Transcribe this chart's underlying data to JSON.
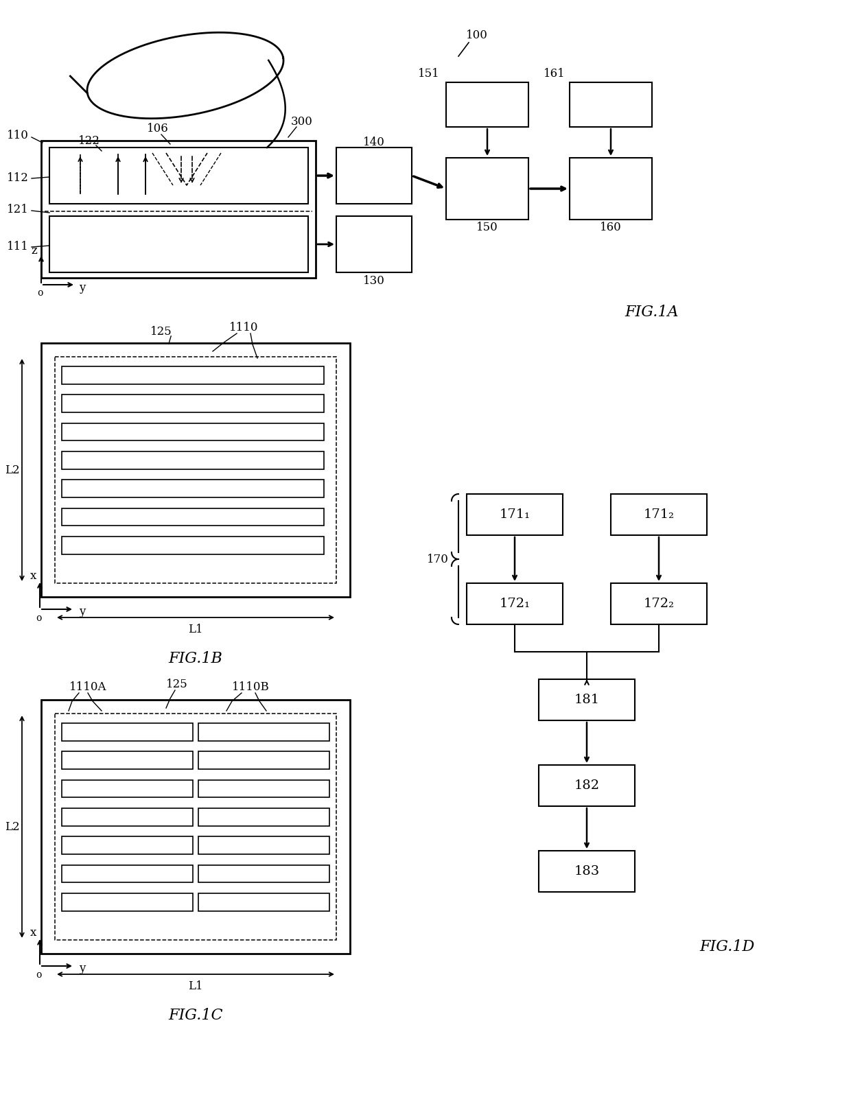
{
  "bg_color": "#ffffff",
  "fig_width": 12.4,
  "fig_height": 15.96,
  "fig1a": {
    "title": "FIG.1A",
    "label_100": "100",
    "label_110": "110",
    "label_106": "106",
    "label_122": "122",
    "label_300": "300",
    "label_140": "140",
    "label_150": "150",
    "label_160": "160",
    "label_151": "151",
    "label_161": "161",
    "label_130": "130",
    "label_112": "112",
    "label_121": "121",
    "label_111": "111"
  },
  "fig1b": {
    "title": "FIG.1B",
    "label_125": "125",
    "label_1110": "1110",
    "label_L1": "L1",
    "label_L2": "L2",
    "num_stripes": 7
  },
  "fig1c": {
    "title": "FIG.1C",
    "label_1110A": "1110A",
    "label_125": "125",
    "label_1110B": "1110B",
    "label_L1": "L1",
    "label_L2": "L2",
    "num_stripes": 7
  },
  "fig1d": {
    "title": "FIG.1D",
    "label_170": "170",
    "label_171_1": "171₁",
    "label_171_2": "171₂",
    "label_172_1": "172₁",
    "label_172_2": "172₂",
    "label_181": "181",
    "label_182": "182",
    "label_183": "183"
  }
}
